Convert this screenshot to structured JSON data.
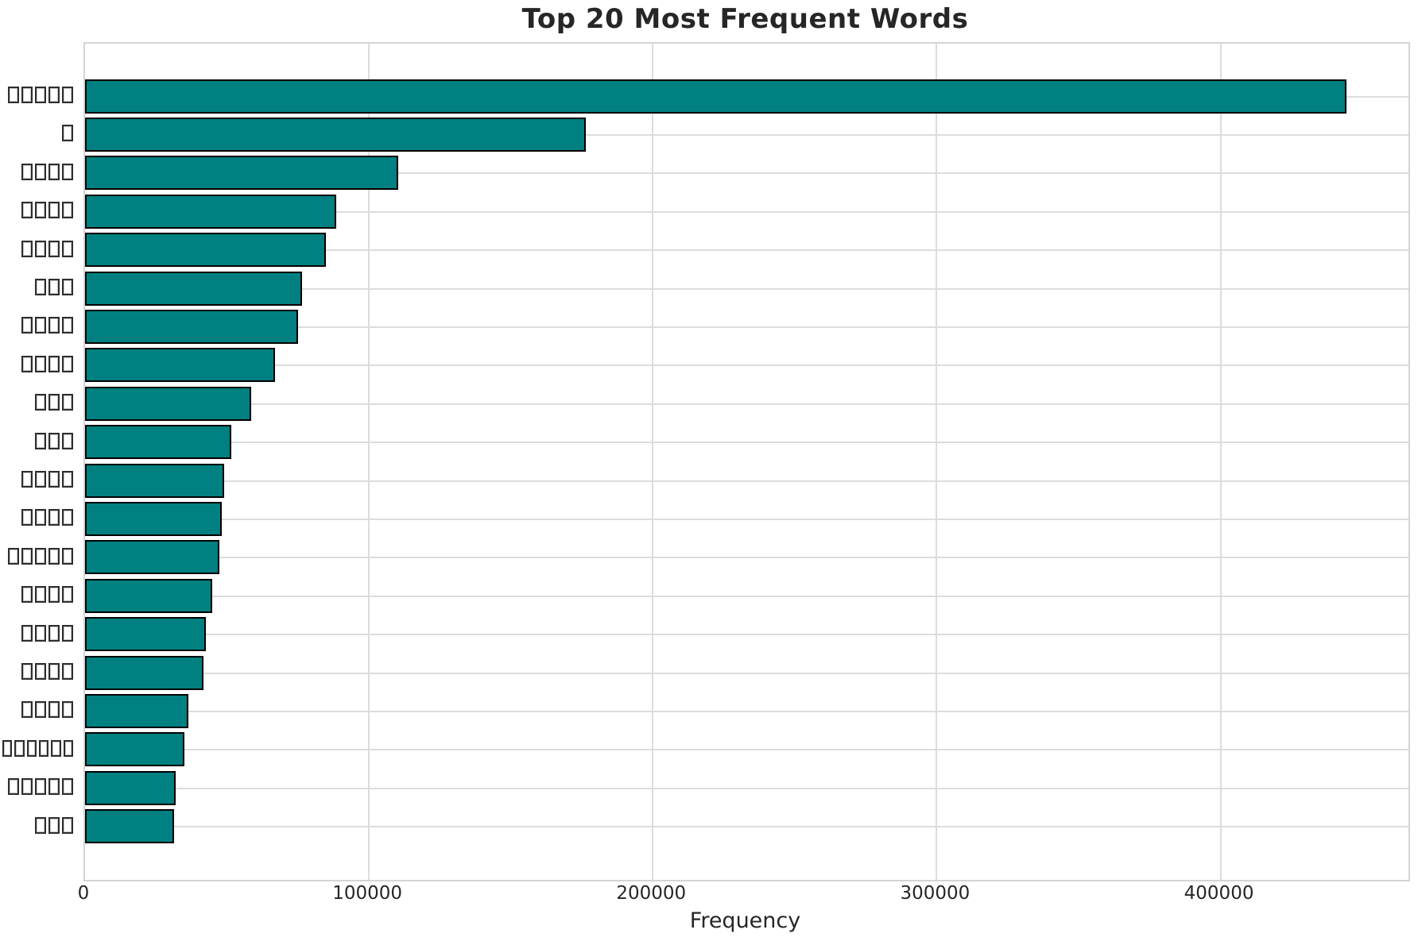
{
  "title": "Top 20 Most Frequent Words",
  "chart_data": {
    "type": "bar",
    "orientation": "horizontal",
    "title": "Top 20 Most Frequent Words",
    "xlabel": "Frequency",
    "ylabel": "",
    "note": "y-axis category labels are rendered as missing-glyph (tofu) boxes in the source image",
    "categories": [
      "□□□□□",
      "□",
      "□□□□",
      "□□□□",
      "□□□□",
      "□□□",
      "□□□□",
      "□□□□",
      "□□□",
      "□□□",
      "□□□□",
      "□□□□",
      "□□□□□",
      "□□□□",
      "□□□□",
      "□□□□",
      "□□□□",
      "□□□□□□",
      "□□□□□",
      "□□□"
    ],
    "values": [
      444000,
      176000,
      110000,
      88000,
      84500,
      76000,
      74500,
      66500,
      58000,
      51200,
      48700,
      47600,
      47000,
      44500,
      42000,
      41400,
      36100,
      34700,
      31600,
      30800
    ],
    "x_ticks": [
      0,
      100000,
      200000,
      300000,
      400000
    ],
    "x_tick_labels": [
      "0",
      "100000",
      "200000",
      "300000",
      "400000"
    ],
    "xlim": [
      0,
      466200
    ],
    "grid": true,
    "legend": null,
    "bar_color": "#008080",
    "bar_edge_color": "#000000",
    "grid_color": "#dcdcdc",
    "spine_color": "#d4d4d4",
    "text_color": "#262626",
    "background": "#ffffff"
  }
}
